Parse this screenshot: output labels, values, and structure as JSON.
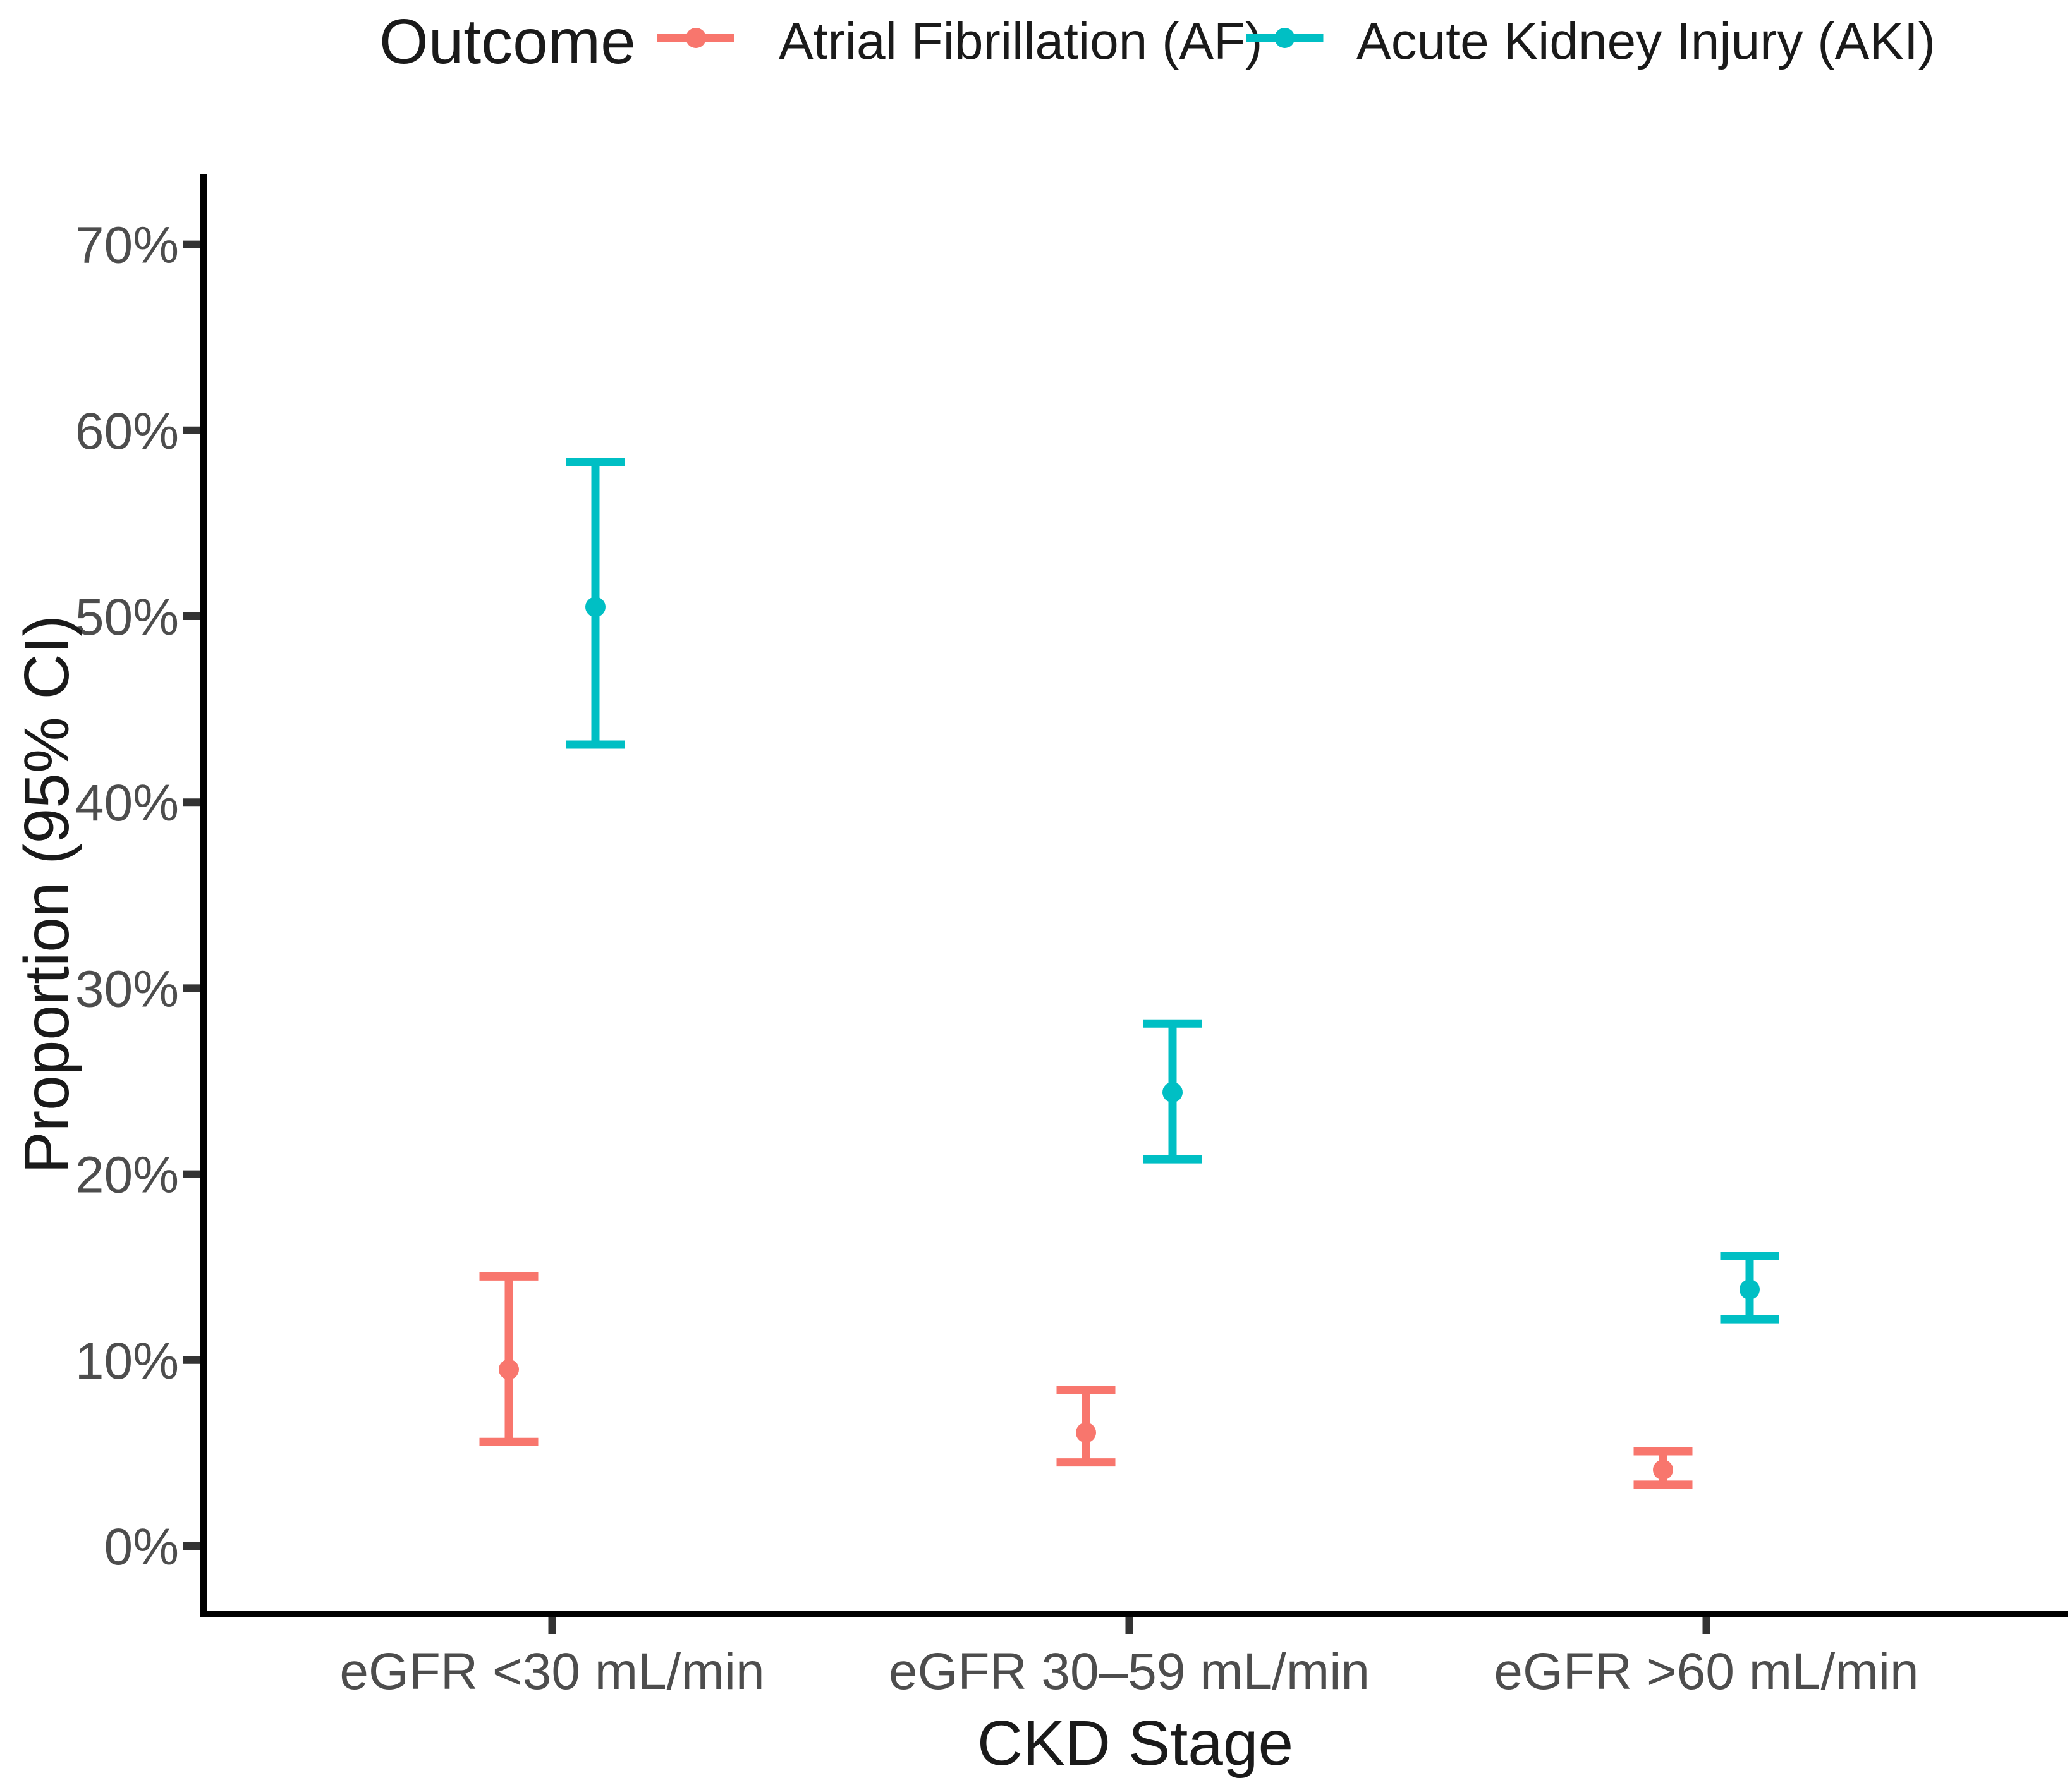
{
  "figure": {
    "background": "#ffffff"
  },
  "legend": {
    "title": "Outcome",
    "position": "top",
    "items": [
      {
        "label": "Atrial Fibrillation (AF)",
        "color": "#F8766D",
        "marker": "pointrange-key"
      },
      {
        "label": "Acute Kidney Injury (AKI)",
        "color": "#00BFC4",
        "marker": "pointrange-key"
      }
    ]
  },
  "axes": {
    "x": {
      "title": "CKD Stage",
      "tick_labels": [
        "eGFR <30 mL/min",
        "eGFR 30–59 mL/min",
        "eGFR >60 mL/min"
      ]
    },
    "y": {
      "title": "Proportion (95% CI)",
      "tick_labels": [
        "0%",
        "10%",
        "20%",
        "30%",
        "40%",
        "50%",
        "60%",
        "70%"
      ],
      "min": 0,
      "max": 70
    }
  },
  "chart_data": {
    "type": "scatter",
    "subtype": "pointrange-with-95ci-errorbars",
    "title": "",
    "xlabel": "CKD Stage",
    "ylabel": "Proportion (95% CI)",
    "categories": [
      "eGFR <30 mL/min",
      "eGFR 30–59 mL/min",
      "eGFR >60 mL/min"
    ],
    "y_unit": "%",
    "ylim": [
      0,
      70
    ],
    "y_ticks": [
      0,
      10,
      20,
      30,
      40,
      50,
      60,
      70
    ],
    "grid": false,
    "legend_position": "top",
    "series": [
      {
        "name": "Atrial Fibrillation (AF)",
        "color": "#F8766D",
        "values": [
          9.5,
          6.1,
          4.1
        ],
        "ci_low": [
          5.6,
          4.5,
          3.3
        ],
        "ci_high": [
          14.5,
          8.4,
          5.1
        ]
      },
      {
        "name": "Acute Kidney Injury (AKI)",
        "color": "#00BFC4",
        "values": [
          50.5,
          24.4,
          13.8
        ],
        "ci_low": [
          43.1,
          20.8,
          12.2
        ],
        "ci_high": [
          58.3,
          28.1,
          15.6
        ]
      }
    ]
  },
  "colors": {
    "axis_line": "#000000",
    "tick_mark": "#333333",
    "tick_label": "#4d4d4d",
    "title_text": "#1a1a1a"
  }
}
